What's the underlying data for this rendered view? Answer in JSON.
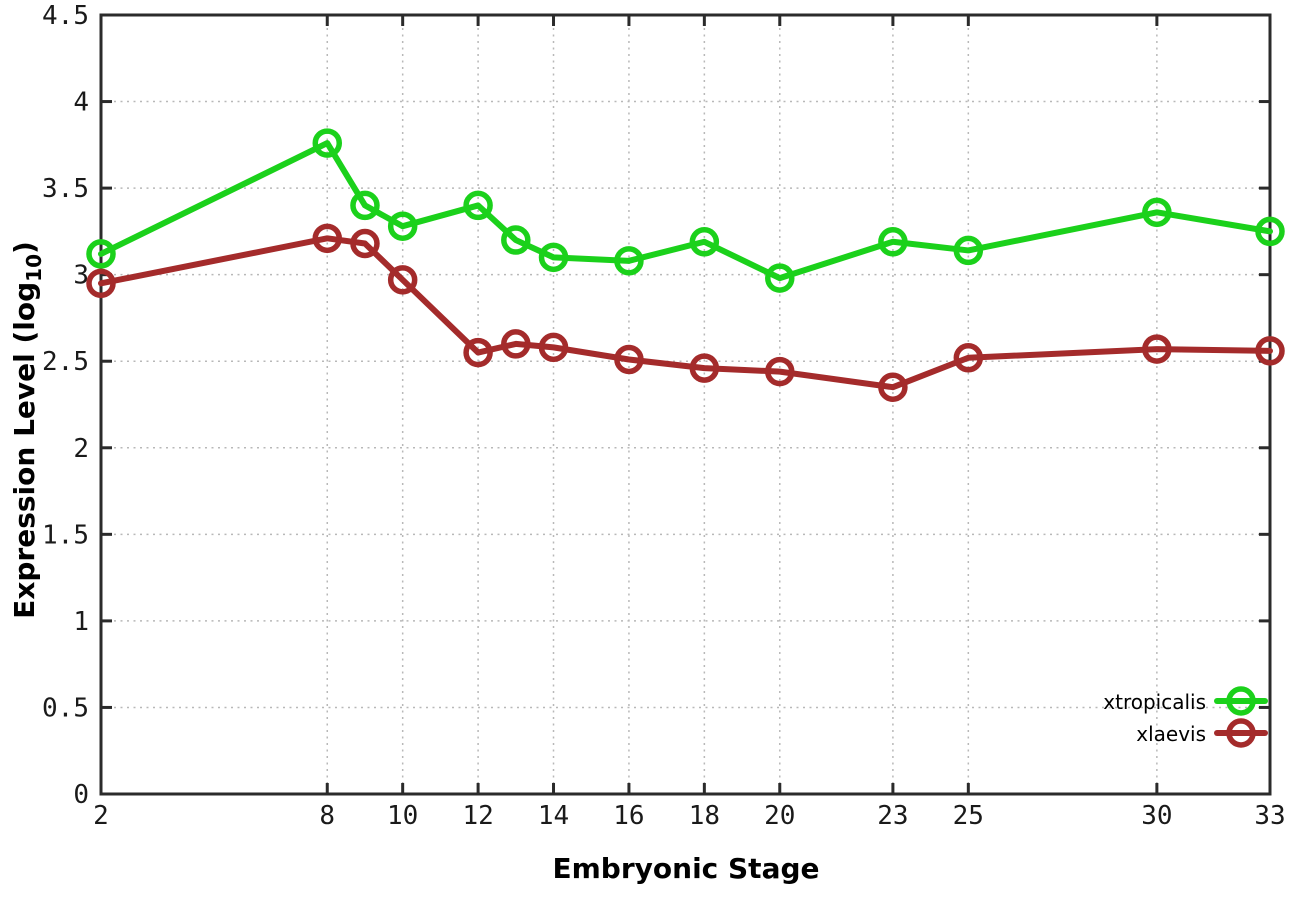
{
  "chart_data": {
    "type": "line",
    "title": "",
    "xlabel": "Embryonic Stage",
    "ylabel": {
      "prefix": "Expression Level (log",
      "subscript": "10",
      "suffix": ")"
    },
    "xlim": [
      2,
      33
    ],
    "ylim": [
      0,
      4.5
    ],
    "x_ticks": [
      2,
      8,
      10,
      12,
      14,
      16,
      18,
      20,
      23,
      25,
      30,
      33
    ],
    "y_ticks": [
      0,
      0.5,
      1,
      1.5,
      2,
      2.5,
      3,
      3.5,
      4,
      4.5
    ],
    "grid": true,
    "legend_position": "inside-bottom-right",
    "x": [
      2,
      8,
      9,
      10,
      12,
      13,
      14,
      16,
      18,
      20,
      23,
      25,
      30,
      33
    ],
    "series": [
      {
        "name": "xtropicalis",
        "color": "#1bd11b",
        "values": [
          3.12,
          3.76,
          3.4,
          3.28,
          3.4,
          3.2,
          3.1,
          3.08,
          3.19,
          2.98,
          3.19,
          3.14,
          3.36,
          3.25
        ]
      },
      {
        "name": "xlaevis",
        "color": "#a42b2b",
        "values": [
          2.95,
          3.21,
          3.18,
          2.97,
          2.55,
          2.6,
          2.58,
          2.51,
          2.46,
          2.44,
          2.35,
          2.52,
          2.57,
          2.56
        ]
      }
    ],
    "style_colors": {
      "grid": "#b8b8b8",
      "border": "#2b2b2b",
      "tick_text": "#1a1a1a"
    }
  }
}
